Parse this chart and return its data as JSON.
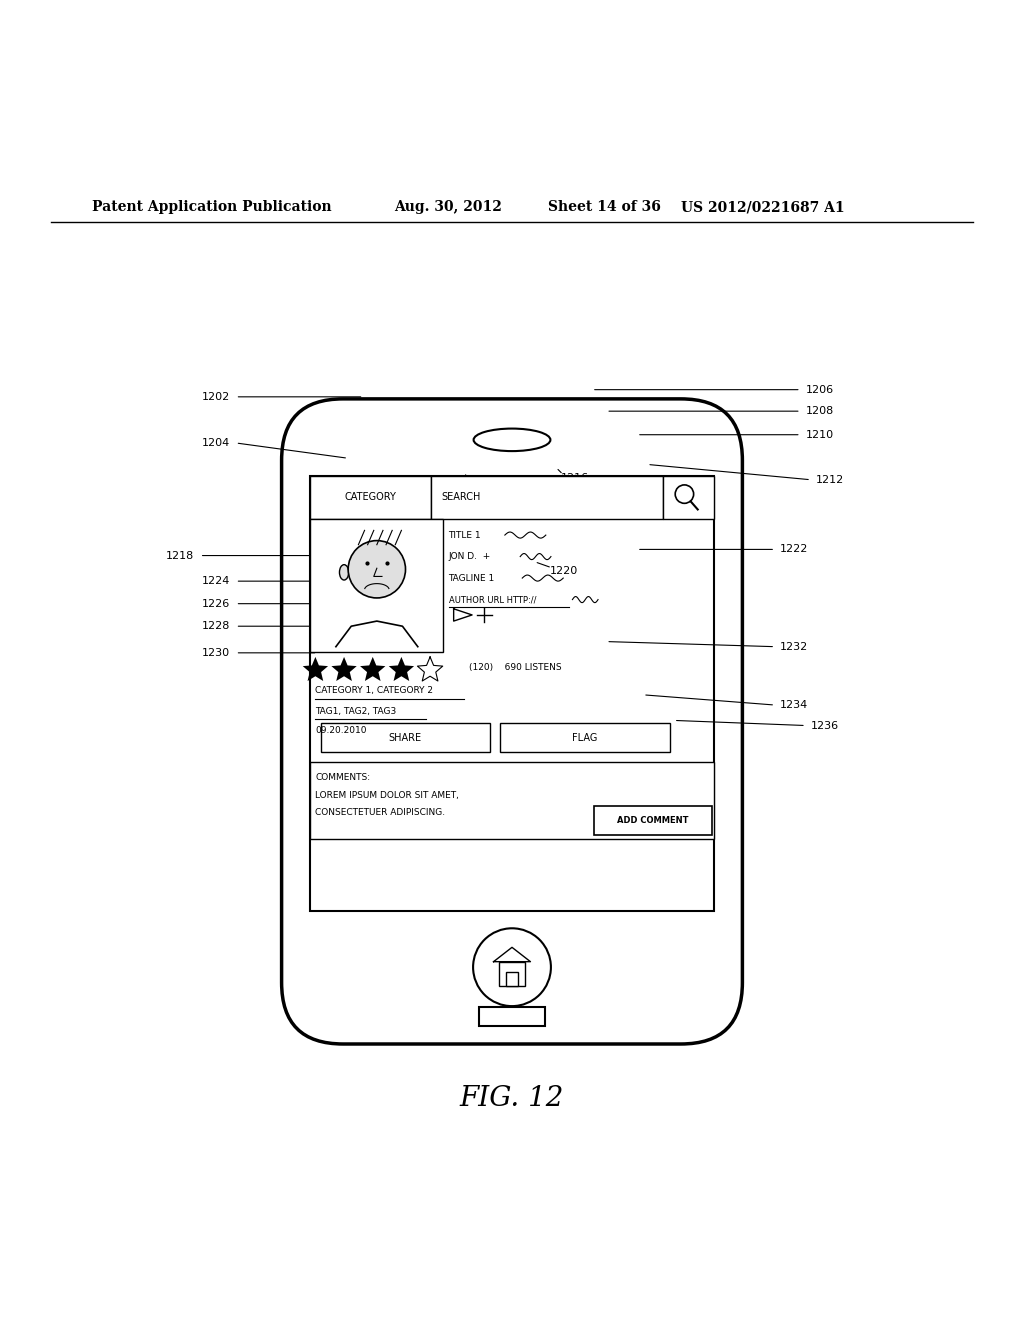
{
  "bg_color": "#ffffff",
  "header_text": "Patent Application Publication",
  "header_date": "Aug. 30, 2012",
  "header_sheet": "Sheet 14 of 36",
  "header_patent": "US 2012/0221687 A1",
  "fig_label": "FIG. 12"
}
